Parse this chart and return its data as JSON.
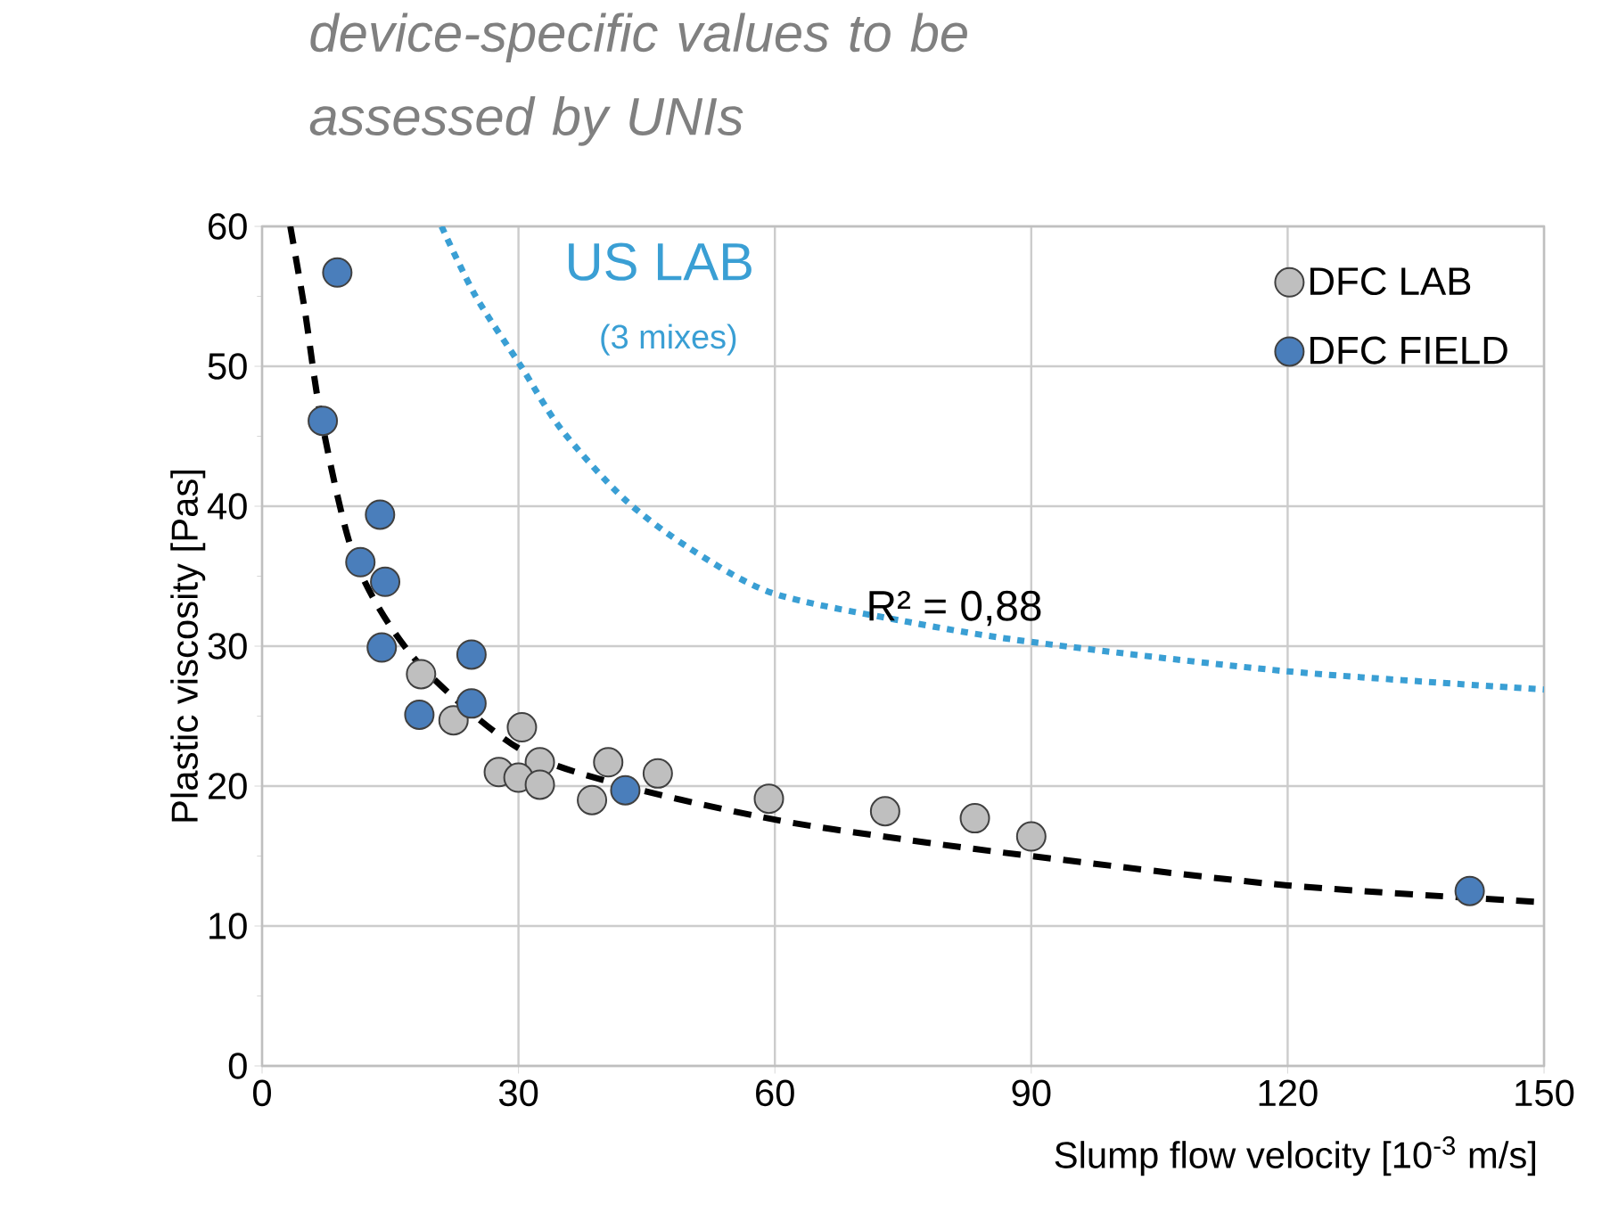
{
  "chart_data": {
    "type": "scatter",
    "title": "device-specific values to be assessed by UNIs",
    "xlabel": "Slump flow velocity [10$^{-3}$ m/s]",
    "ylabel": "Plastic viscosity [Pas]",
    "xlim": [
      0,
      150
    ],
    "xticks": [
      0,
      30,
      60,
      90,
      120,
      150
    ],
    "ylim": [
      0,
      60
    ],
    "yticks": [
      0,
      10,
      20,
      30,
      40,
      50,
      60
    ],
    "grid": true,
    "legend": "top right",
    "series": [
      {
        "name": "DFC LAB",
        "type": "scatter",
        "marker": "circle",
        "color": "#bfbfbf",
        "x": [
          18.6,
          22.4,
          30.4,
          32.5,
          27.7,
          30.0,
          32.5,
          38.6,
          40.5,
          46.3,
          59.3,
          72.9,
          83.4,
          90.0
        ],
        "values": [
          28.0,
          24.7,
          24.2,
          21.7,
          21.0,
          20.6,
          20.1,
          19.0,
          21.7,
          20.9,
          19.1,
          18.2,
          17.7,
          16.4
        ]
      },
      {
        "name": "DFC FIELD",
        "type": "scatter",
        "marker": "circle",
        "color": "#4a7ebb",
        "x": [
          8.8,
          7.1,
          13.8,
          11.5,
          14.4,
          14.0,
          24.5,
          18.4,
          24.5,
          42.5,
          141.3
        ],
        "values": [
          56.7,
          46.1,
          39.4,
          36.0,
          34.6,
          29.9,
          29.4,
          25.1,
          25.9,
          19.7,
          12.5
        ]
      },
      {
        "type": "line",
        "marker": "none",
        "color": "#000000",
        "line_style": "dashed",
        "x": [
          3.3,
          5,
          7,
          11,
          18,
          30,
          42.5,
          60,
          75,
          90,
          120,
          150
        ],
        "values": [
          60,
          54,
          46,
          36,
          29,
          22.7,
          20,
          17.6,
          16.2,
          15,
          12.9,
          11.7
        ]
      },
      {
        "name": "US LAB",
        "type": "line",
        "marker": "none",
        "color": "#3a9fd4",
        "line_style": "dotted",
        "x": [
          21,
          25,
          30.3,
          35,
          42.4,
          50,
          59.7,
          75,
          90,
          120,
          150
        ],
        "values": [
          60,
          55,
          50,
          45.5,
          40.5,
          37,
          33.8,
          31.8,
          30.3,
          28.2,
          26.9
        ]
      }
    ],
    "annotations": [
      "(3 mixes)",
      "R² = 0,88"
    ]
  }
}
